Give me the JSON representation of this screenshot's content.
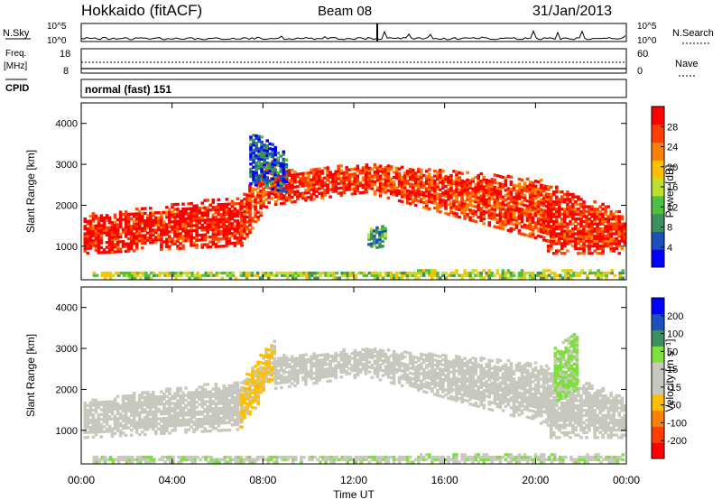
{
  "header": {
    "radar": "Hokkaido (fitACF)",
    "beam": "Beam 08",
    "date": "31/Jan/2013"
  },
  "strips": {
    "nsky_label": "N.Sky",
    "nsearch_label": "N.Search",
    "nsky_ticks": [
      "10^5",
      "10^0"
    ],
    "nsearch_ticks": [
      "10^5",
      "10^0"
    ],
    "freq_label_line1": "Freq.",
    "freq_label_line2": "[MHz]",
    "freq_ticks": [
      "18",
      "8"
    ],
    "nave_label": "Nave",
    "nave_ticks": [
      "60",
      "0"
    ],
    "cpid_label": "CPID",
    "cpid_text": "normal (fast) 151"
  },
  "colors": {
    "power": [
      "#0000ff",
      "#1f4fbf",
      "#3f8f5f",
      "#4fbf3f",
      "#bfdf2f",
      "#ffbf00",
      "#ff7f00",
      "#ff3f00",
      "#ff0000"
    ],
    "velocity": [
      "#ff0000",
      "#ff3f00",
      "#ff7f00",
      "#ffbf00",
      "#c8c8be",
      "#c8c8be",
      "#7fdf3f",
      "#3f8f5f",
      "#1f4fbf",
      "#0000ff"
    ]
  },
  "chart_data": [
    {
      "type": "heatmap",
      "name": "power",
      "ylabel": "Slant Range [km]",
      "xlim": [
        0,
        24
      ],
      "ylim": [
        180,
        4500
      ],
      "yticks": [
        1000,
        2000,
        3000,
        4000
      ],
      "ytick_labels": [
        "1000",
        "2000",
        "3000",
        "4000"
      ],
      "colorbar_label": "Power [dB]",
      "colorbar_ticks": [
        "4",
        "8",
        "12",
        "16",
        "20",
        "24",
        "28"
      ],
      "colorbar_range": [
        0,
        30
      ],
      "echo_bands": [
        {
          "t0": 0.1,
          "t1": 7.0,
          "lo0": 800,
          "lo1": 1000,
          "hi0": 1750,
          "hi1": 2200,
          "level": 28
        },
        {
          "t0": 7.0,
          "t1": 8.5,
          "lo0": 1000,
          "lo1": 2300,
          "hi0": 2200,
          "hi1": 3300,
          "level": 26
        },
        {
          "t0": 8.5,
          "t1": 12.5,
          "lo0": 2000,
          "lo1": 2300,
          "hi0": 2800,
          "hi1": 3000,
          "level": 27
        },
        {
          "t0": 12.5,
          "t1": 20.5,
          "lo0": 2300,
          "lo1": 1100,
          "hi0": 3000,
          "hi1": 2600,
          "level": 26
        },
        {
          "t0": 20.5,
          "t1": 23.9,
          "lo0": 800,
          "lo1": 800,
          "hi0": 2500,
          "hi1": 1800,
          "level": 27
        },
        {
          "t0": 7.4,
          "t1": 9.0,
          "lo0": 2500,
          "lo1": 2300,
          "hi0": 3800,
          "hi1": 3300,
          "level": 5
        },
        {
          "t0": 12.6,
          "t1": 13.4,
          "lo0": 900,
          "lo1": 1000,
          "hi0": 1400,
          "hi1": 1500,
          "level": 10
        },
        {
          "t0": 0.5,
          "t1": 23.9,
          "lo0": 200,
          "lo1": 200,
          "hi0": 350,
          "hi1": 400,
          "level": 14
        }
      ]
    },
    {
      "type": "heatmap",
      "name": "velocity",
      "xlabel": "Time UT",
      "ylabel": "Slant Range [km]",
      "xlim": [
        0,
        24
      ],
      "ylim": [
        180,
        4500
      ],
      "xticks": [
        0,
        4,
        8,
        12,
        16,
        20,
        24
      ],
      "xtick_labels": [
        "00:00",
        "04:00",
        "08:00",
        "12:00",
        "16:00",
        "20:00",
        "00:00"
      ],
      "yticks": [
        1000,
        2000,
        3000,
        4000
      ],
      "ytick_labels": [
        "1000",
        "2000",
        "3000",
        "4000"
      ],
      "colorbar_label": "Velocity [m s⁻¹]",
      "colorbar_ticks": [
        "200",
        "100",
        "50",
        "15",
        "-15",
        "-50",
        "-100",
        "-200"
      ],
      "colorbar_range": [
        -250,
        250
      ],
      "echo_bands": [
        {
          "t0": 0.1,
          "t1": 7.0,
          "lo0": 800,
          "lo1": 1000,
          "hi0": 1750,
          "hi1": 2200,
          "level": 0
        },
        {
          "t0": 7.0,
          "t1": 8.5,
          "lo0": 1000,
          "lo1": 2300,
          "hi0": 2200,
          "hi1": 3300,
          "level": -60
        },
        {
          "t0": 8.5,
          "t1": 12.5,
          "lo0": 2000,
          "lo1": 2300,
          "hi0": 2800,
          "hi1": 3000,
          "level": 0
        },
        {
          "t0": 12.5,
          "t1": 20.5,
          "lo0": 2300,
          "lo1": 1100,
          "hi0": 3000,
          "hi1": 2600,
          "level": 0
        },
        {
          "t0": 20.5,
          "t1": 23.9,
          "lo0": 800,
          "lo1": 800,
          "hi0": 2500,
          "hi1": 1800,
          "level": 0
        },
        {
          "t0": 20.8,
          "t1": 21.8,
          "lo0": 1600,
          "lo1": 2000,
          "hi0": 3000,
          "hi1": 3400,
          "level": 60
        },
        {
          "t0": 0.5,
          "t1": 23.9,
          "lo0": 200,
          "lo1": 200,
          "hi0": 350,
          "hi1": 400,
          "level": 40
        }
      ]
    }
  ]
}
